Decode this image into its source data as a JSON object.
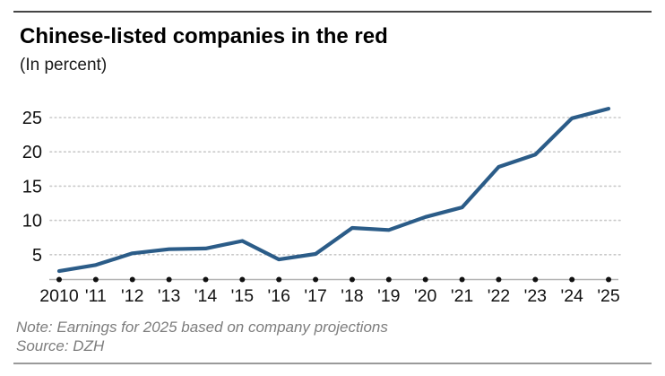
{
  "header": {
    "title": "Chinese-listed companies in the red",
    "subtitle": "(In percent)"
  },
  "chart_data": {
    "type": "line",
    "title": "Chinese-listed companies in the red",
    "subtitle": "(In percent)",
    "xlabel": "",
    "ylabel": "",
    "categories": [
      "2010",
      "'11",
      "'12",
      "'13",
      "'14",
      "'15",
      "'16",
      "'17",
      "'18",
      "'19",
      "'20",
      "'21",
      "'22",
      "'23",
      "'24",
      "'25"
    ],
    "values": [
      2.6,
      3.5,
      5.2,
      5.8,
      5.9,
      7.0,
      4.3,
      5.1,
      8.9,
      8.6,
      10.5,
      11.9,
      17.8,
      19.6,
      24.9,
      26.3
    ],
    "yticks": [
      5,
      10,
      15,
      20,
      25
    ],
    "ylim": [
      0,
      27.5
    ],
    "grid": "horizontal-dotted",
    "legend": "none",
    "line_color": "#2b5c88"
  },
  "footer": {
    "note": "Note: Earnings for 2025 based on company projections",
    "source": "Source: DZH"
  },
  "colors": {
    "line": "#2b5c88",
    "grid": "#c9c9c9",
    "axis_line": "#b3b3b3",
    "tick_dot": "#111111",
    "tick_label": "#111111",
    "top_rule": "#454545",
    "bottom_rule": "#9a9a9a",
    "note_text": "#7d7d7d"
  }
}
